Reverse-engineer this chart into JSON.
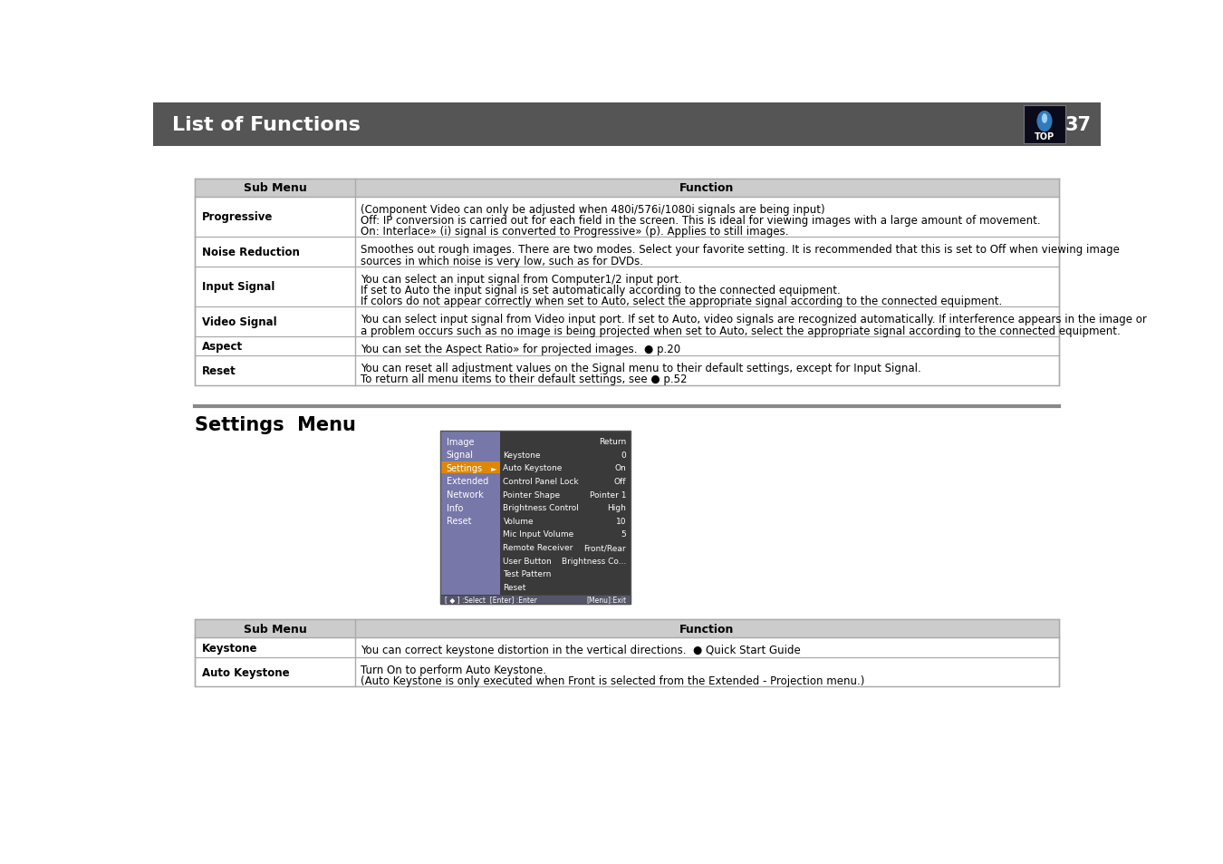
{
  "header_bg": "#555555",
  "header_text": "List of Functions",
  "header_text_color": "#ffffff",
  "page_num": "37",
  "page_bg": "#ffffff",
  "table1_header": [
    "Sub Menu",
    "Function"
  ],
  "table1_rows": [
    {
      "col1": "Progressive",
      "col2_lines": [
        "(Component Video can only be adjusted when 480i/576i/1080i signals are being input)",
        "Off: IP conversion is carried out for each field in the screen. This is ideal for viewing images with a large amount of movement.",
        "On: Interlace» (i) signal is converted to Progressive» (p). Applies to still images."
      ]
    },
    {
      "col1": "Noise Reduction",
      "col2_lines": [
        "Smoothes out rough images. There are two modes. Select your favorite setting. It is recommended that this is set to Off when viewing image",
        "sources in which noise is very low, such as for DVDs."
      ]
    },
    {
      "col1": "Input Signal",
      "col2_lines": [
        "You can select an input signal from Computer1/2 input port.",
        "If set to Auto the input signal is set automatically according to the connected equipment.",
        "If colors do not appear correctly when set to Auto, select the appropriate signal according to the connected equipment."
      ]
    },
    {
      "col1": "Video Signal",
      "col2_lines": [
        "You can select input signal from Video input port. If set to Auto, video signals are recognized automatically. If interference appears in the image or",
        "a problem occurs such as no image is being projected when set to Auto, select the appropriate signal according to the connected equipment."
      ]
    },
    {
      "col1": "Aspect",
      "col2_lines": [
        "You can set the Aspect Ratio» for projected images.  ● p.20"
      ]
    },
    {
      "col1": "Reset",
      "col2_lines": [
        "You can reset all adjustment values on the Signal menu to their default settings, except for Input Signal.",
        "To return all menu items to their default settings, see ● p.52"
      ]
    }
  ],
  "section2_title": "Settings  Menu",
  "table2_header": [
    "Sub Menu",
    "Function"
  ],
  "table2_rows": [
    {
      "col1": "Keystone",
      "col2_lines": [
        "You can correct keystone distortion in the vertical directions.  ● Quick Start Guide"
      ]
    },
    {
      "col1": "Auto Keystone",
      "col2_lines": [
        "Turn On to perform Auto Keystone.",
        "(Auto Keystone is only executed when Front is selected from the Extended - Projection menu.)"
      ]
    }
  ],
  "menu_items_left": [
    "Image",
    "Signal",
    "Settings",
    "Extended",
    "Network",
    "Info",
    "Reset"
  ],
  "menu_items_right": [
    [
      "Return",
      ""
    ],
    [
      "Keystone",
      "0"
    ],
    [
      "Auto Keystone",
      "On"
    ],
    [
      "Control Panel Lock",
      "Off"
    ],
    [
      "Pointer Shape",
      "Pointer 1"
    ],
    [
      "Brightness Control",
      "High"
    ],
    [
      "Volume",
      "10"
    ],
    [
      "Mic Input Volume",
      "5"
    ],
    [
      "Remote Receiver",
      "Front/Rear"
    ],
    [
      "User Button",
      "Brightness Co..."
    ],
    [
      "Test Pattern",
      ""
    ],
    [
      "Reset",
      ""
    ]
  ],
  "divider_color": "#888888",
  "table_border_color": "#aaaaaa",
  "table_header_bg": "#cccccc",
  "font_size": 8.5,
  "header_font_size": 9
}
